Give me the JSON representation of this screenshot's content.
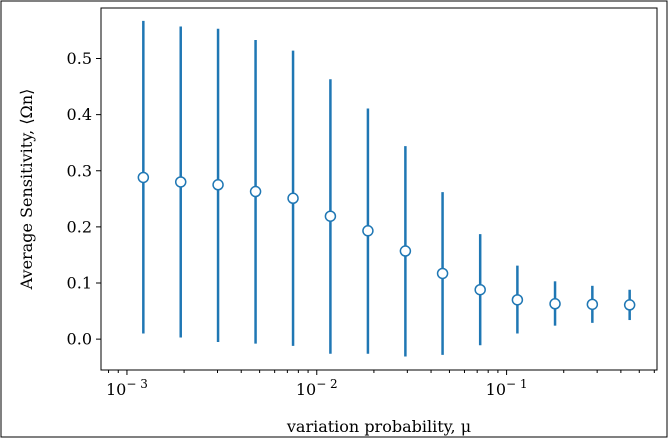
{
  "chart_data": {
    "type": "scatter",
    "title": "",
    "xlabel": "variation probability, μ",
    "ylabel": "Average  Sensitivity, ⟨Ωn⟩",
    "xscale": "log",
    "xlim": [
      0.00073,
      0.62
    ],
    "ylim": [
      -0.055,
      0.59
    ],
    "grid": false,
    "legend": "none",
    "marker": "open-circle",
    "errorbars": true,
    "color": "#1f77b4",
    "x_ticks": [
      {
        "value": 0.001,
        "base": "10",
        "exp": "− 3"
      },
      {
        "value": 0.01,
        "base": "10",
        "exp": "− 2"
      },
      {
        "value": 0.1,
        "base": "10",
        "exp": "− 1"
      }
    ],
    "y_ticks": [
      {
        "value": 0.0,
        "label": "0.0"
      },
      {
        "value": 0.1,
        "label": "0.1"
      },
      {
        "value": 0.2,
        "label": "0.2"
      },
      {
        "value": 0.3,
        "label": "0.3"
      },
      {
        "value": 0.4,
        "label": "0.4"
      },
      {
        "value": 0.5,
        "label": "0.5"
      }
    ],
    "points": [
      {
        "x": 0.00122,
        "y": 0.288,
        "err_low": 0.01,
        "err_high": 0.567
      },
      {
        "x": 0.00192,
        "y": 0.28,
        "err_low": 0.003,
        "err_high": 0.557
      },
      {
        "x": 0.00302,
        "y": 0.275,
        "err_low": -0.005,
        "err_high": 0.553
      },
      {
        "x": 0.00476,
        "y": 0.263,
        "err_low": -0.008,
        "err_high": 0.533
      },
      {
        "x": 0.0075,
        "y": 0.251,
        "err_low": -0.012,
        "err_high": 0.514
      },
      {
        "x": 0.0118,
        "y": 0.219,
        "err_low": -0.026,
        "err_high": 0.463
      },
      {
        "x": 0.0186,
        "y": 0.193,
        "err_low": -0.026,
        "err_high": 0.411
      },
      {
        "x": 0.0293,
        "y": 0.157,
        "err_low": -0.031,
        "err_high": 0.344
      },
      {
        "x": 0.046,
        "y": 0.117,
        "err_low": -0.028,
        "err_high": 0.262
      },
      {
        "x": 0.0726,
        "y": 0.088,
        "err_low": -0.011,
        "err_high": 0.187
      },
      {
        "x": 0.114,
        "y": 0.07,
        "err_low": 0.01,
        "err_high": 0.131
      },
      {
        "x": 0.18,
        "y": 0.063,
        "err_low": 0.024,
        "err_high": 0.103
      },
      {
        "x": 0.283,
        "y": 0.062,
        "err_low": 0.029,
        "err_high": 0.095
      },
      {
        "x": 0.445,
        "y": 0.061,
        "err_low": 0.034,
        "err_high": 0.088
      }
    ]
  }
}
